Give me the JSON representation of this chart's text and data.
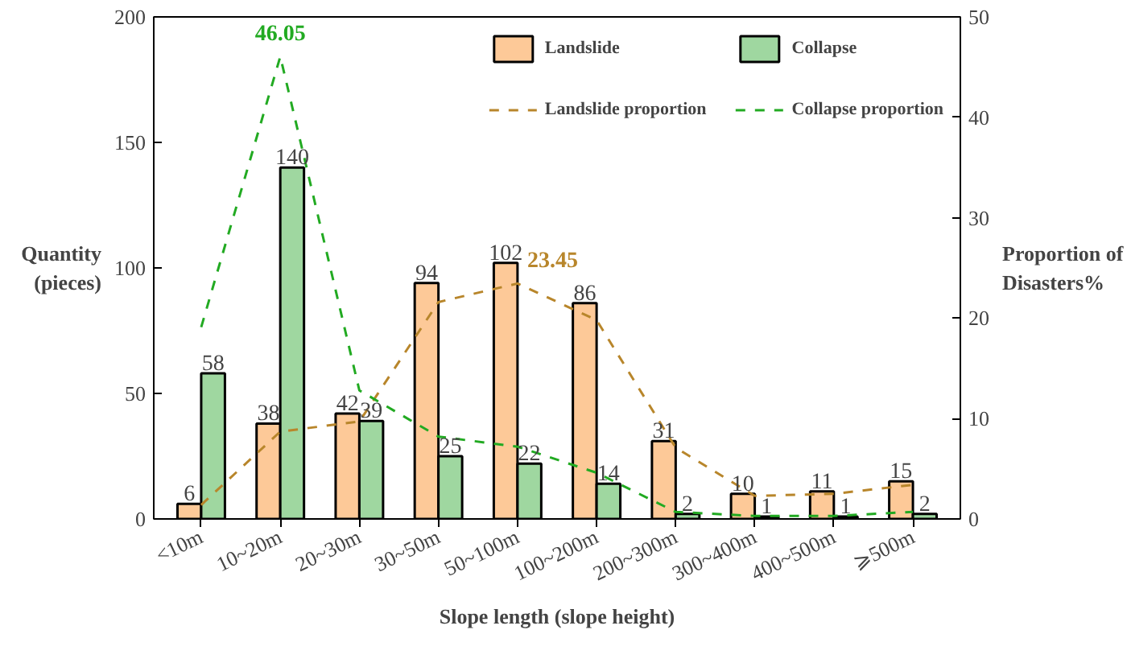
{
  "chart_data": {
    "type": "bar",
    "xlabel": "Slope length (slope height)",
    "ylabel": "Quantity\n(pieces)",
    "y2label": "Proportion of\nDisasters%",
    "categories": [
      "<10m",
      "10~20m",
      "20~30m",
      "30~50m",
      "50~100m",
      "100~200m",
      "200~300m",
      "300~400m",
      "400~500m",
      "⩾500m"
    ],
    "series": [
      {
        "name": "Landslide",
        "color": "#fdc998",
        "values": [
          6,
          38,
          42,
          94,
          102,
          86,
          31,
          10,
          11,
          15
        ],
        "value_labels": [
          "6",
          "38",
          "42",
          "94",
          "102",
          "86",
          "31",
          "10",
          "11",
          "15"
        ]
      },
      {
        "name": "Collapse",
        "color": "#9fd7a0",
        "values": [
          58,
          140,
          39,
          25,
          22,
          14,
          2,
          1,
          1,
          2
        ],
        "value_labels": [
          "58",
          "140",
          "39",
          "25",
          "22",
          "14",
          "2",
          "1",
          "1",
          "2"
        ]
      },
      {
        "name": "Landslide proportion",
        "type": "line",
        "axis": "y2",
        "color": "#b8862b",
        "line_style": "dashed",
        "values": [
          1.4,
          8.7,
          9.7,
          21.6,
          23.45,
          19.8,
          7.1,
          2.3,
          2.5,
          3.4
        ],
        "value_labels": [
          null,
          null,
          null,
          null,
          "23.45",
          null,
          null,
          null,
          null,
          null
        ]
      },
      {
        "name": "Collapse proportion",
        "type": "line",
        "axis": "y2",
        "color": "#22aa22",
        "line_style": "dashed",
        "values": [
          19.1,
          46.05,
          12.8,
          8.2,
          7.2,
          4.6,
          0.7,
          0.3,
          0.3,
          0.7
        ],
        "value_labels": [
          null,
          "46.05",
          null,
          null,
          null,
          null,
          null,
          null,
          null,
          null
        ]
      }
    ],
    "ylim": [
      0,
      200
    ],
    "yticks": [
      0,
      50,
      100,
      150,
      200
    ],
    "y2lim": [
      0,
      50
    ],
    "y2ticks": [
      0,
      10,
      20,
      30,
      40,
      50
    ],
    "grid": false,
    "legend": "top right"
  }
}
